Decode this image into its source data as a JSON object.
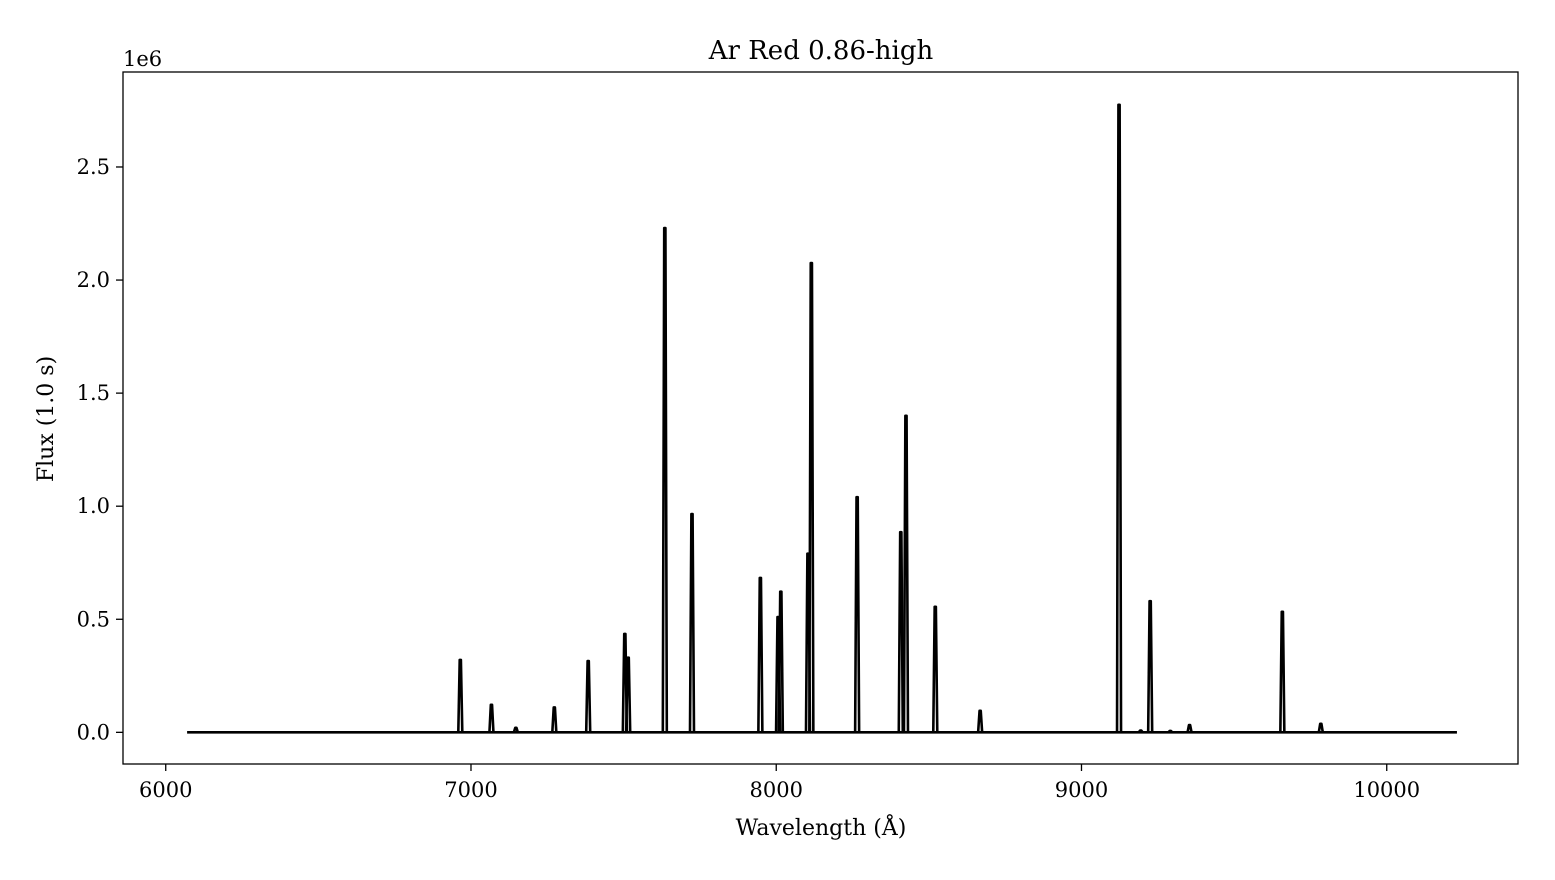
{
  "chart_data": {
    "type": "line",
    "title": "Ar Red 0.86-high",
    "xlabel": "Wavelength (Å)",
    "ylabel": "Flux (1.0 s)",
    "y_offset_label": "1e6",
    "xlim": [
      5860,
      10430
    ],
    "ylim": [
      -140000,
      2920000
    ],
    "x_ticks": [
      6000,
      7000,
      8000,
      9000,
      10000
    ],
    "x_tick_labels": [
      "6000",
      "7000",
      "8000",
      "9000",
      "10000"
    ],
    "y_ticks": [
      0,
      500000,
      1000000,
      1500000,
      2000000,
      2500000
    ],
    "y_tick_labels": [
      "0.0",
      "0.5",
      "1.0",
      "1.5",
      "2.0",
      "2.5"
    ],
    "grid": false,
    "line_color": "#000000",
    "series": [
      {
        "x_range": [
          6070,
          10230
        ],
        "baseline": 0,
        "peaks": [
          {
            "x": 6965,
            "y": 320000
          },
          {
            "x": 7067,
            "y": 122000
          },
          {
            "x": 7147,
            "y": 20000
          },
          {
            "x": 7273,
            "y": 110000
          },
          {
            "x": 7384,
            "y": 315000
          },
          {
            "x": 7504,
            "y": 435000
          },
          {
            "x": 7515,
            "y": 330000
          },
          {
            "x": 7635,
            "y": 2230000
          },
          {
            "x": 7724,
            "y": 965000
          },
          {
            "x": 7948,
            "y": 683000
          },
          {
            "x": 8006,
            "y": 510000
          },
          {
            "x": 8015,
            "y": 622000
          },
          {
            "x": 8104,
            "y": 790000
          },
          {
            "x": 8115,
            "y": 2075000
          },
          {
            "x": 8265,
            "y": 1040000
          },
          {
            "x": 8408,
            "y": 885000
          },
          {
            "x": 8425,
            "y": 1400000
          },
          {
            "x": 8521,
            "y": 555000
          },
          {
            "x": 8668,
            "y": 95000
          },
          {
            "x": 9123,
            "y": 2775000
          },
          {
            "x": 9194,
            "y": 8000
          },
          {
            "x": 9225,
            "y": 580000
          },
          {
            "x": 9291,
            "y": 6000
          },
          {
            "x": 9354,
            "y": 32000
          },
          {
            "x": 9658,
            "y": 533000
          },
          {
            "x": 9784,
            "y": 38000
          }
        ]
      }
    ]
  }
}
